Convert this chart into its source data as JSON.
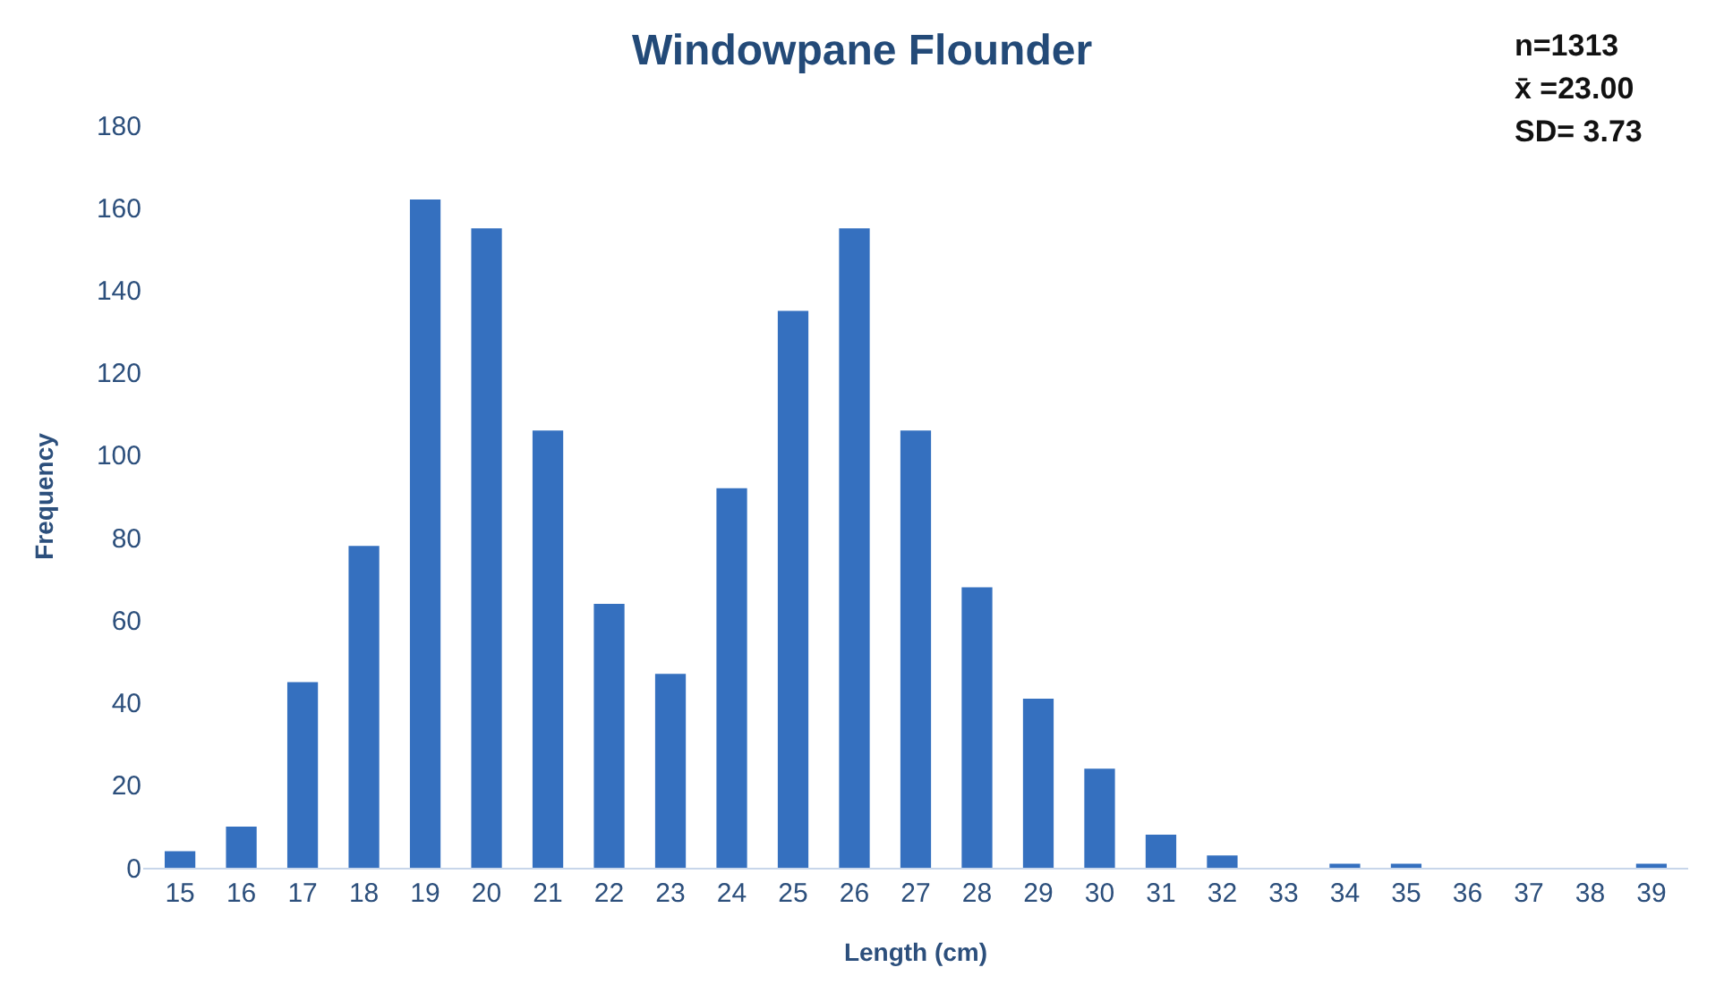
{
  "chart_data": {
    "type": "bar",
    "title": "Windowpane Flounder",
    "xlabel": "Length (cm)",
    "ylabel": "Frequency",
    "categories": [
      "15",
      "16",
      "17",
      "18",
      "19",
      "20",
      "21",
      "22",
      "23",
      "24",
      "25",
      "26",
      "27",
      "28",
      "29",
      "30",
      "31",
      "32",
      "33",
      "34",
      "35",
      "36",
      "37",
      "38",
      "39"
    ],
    "values": [
      4,
      10,
      45,
      78,
      162,
      155,
      106,
      64,
      47,
      92,
      135,
      155,
      106,
      68,
      41,
      24,
      8,
      3,
      0,
      1,
      1,
      0,
      0,
      0,
      1
    ],
    "color": "#3570bf",
    "ylim": [
      0,
      180
    ],
    "yticks": [
      0,
      20,
      40,
      60,
      80,
      100,
      120,
      140,
      160,
      180
    ],
    "grid": false,
    "annotations": [
      "n=1313",
      "x̄ =23.00",
      "SD= 3.73"
    ]
  }
}
